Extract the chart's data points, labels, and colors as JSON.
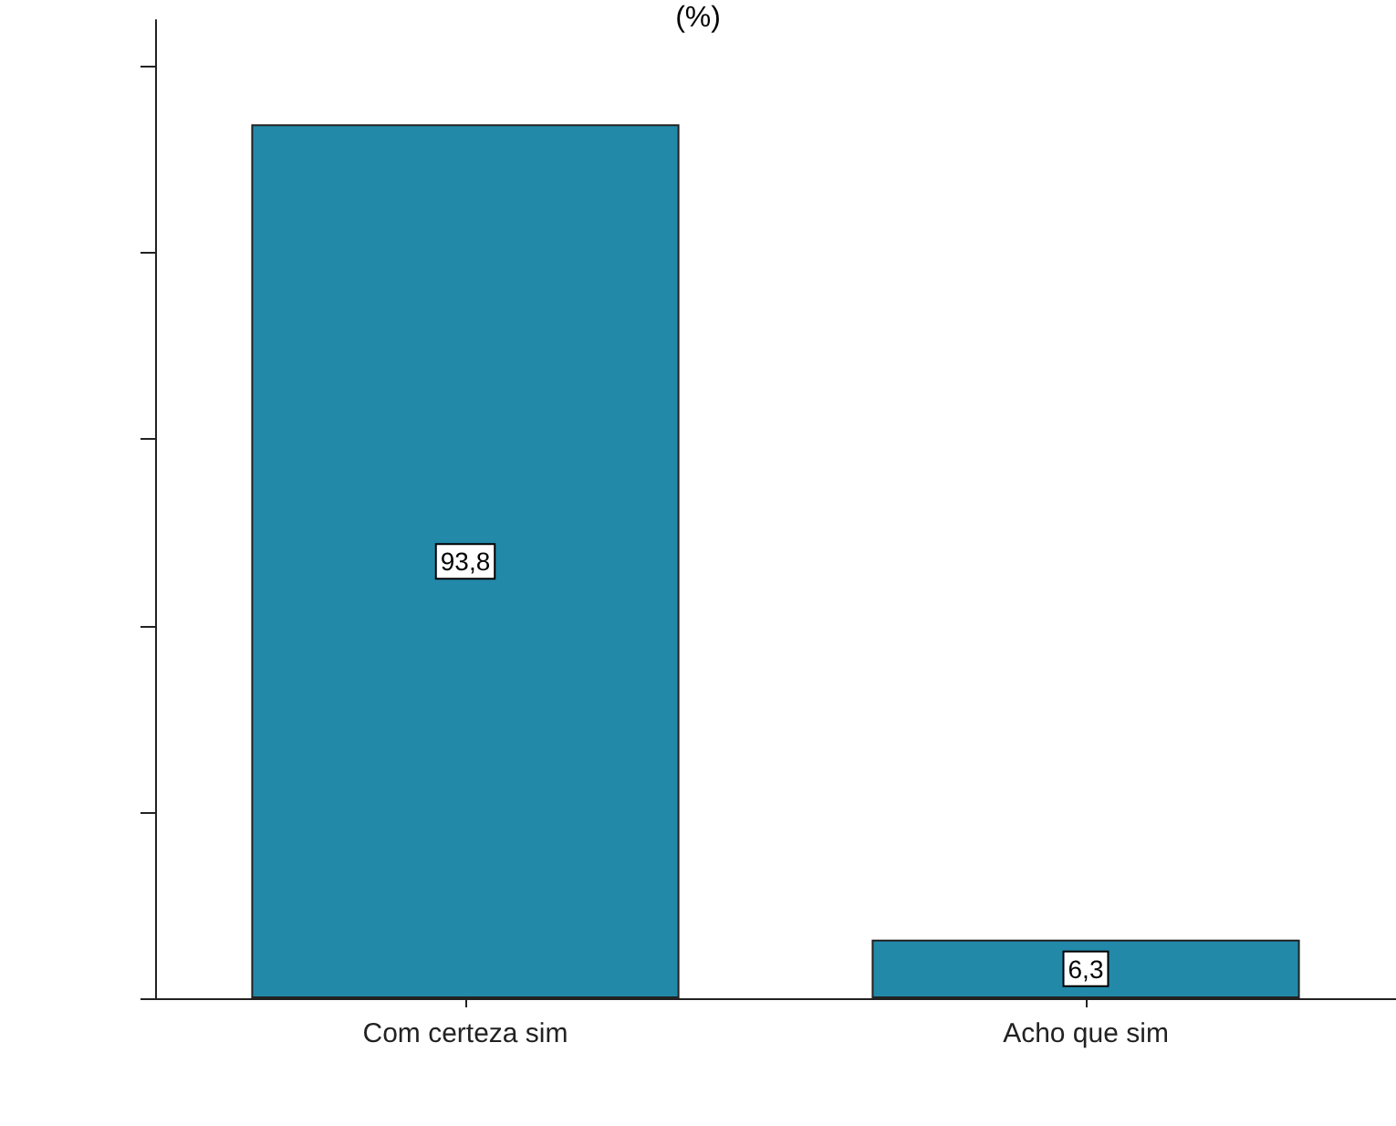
{
  "chart_data": {
    "type": "bar",
    "title": "(%)",
    "categories": [
      "Com certeza sim",
      "Acho que sim"
    ],
    "values": [
      93.8,
      6.3
    ],
    "value_labels": [
      "93,8",
      "6,3"
    ],
    "color": "#2389a9",
    "ylim": [
      0,
      105
    ],
    "yticks": [
      {
        "value": 0,
        "label": null
      },
      {
        "value": 20,
        "label": null
      },
      {
        "value": 40,
        "label": null
      },
      {
        "value": 60,
        "label": null
      },
      {
        "value": 80,
        "label": null
      },
      {
        "value": 100,
        "label": null
      }
    ],
    "tick_labels": "x"
  }
}
